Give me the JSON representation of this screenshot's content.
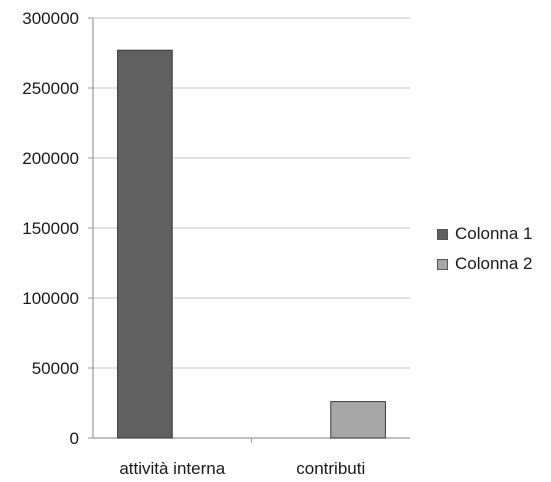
{
  "chart_data": {
    "type": "bar",
    "categories": [
      "attività interna",
      "contributi"
    ],
    "series": [
      {
        "name": "Colonna 1",
        "values": [
          277000,
          null
        ],
        "color": "#606060"
      },
      {
        "name": "Colonna 2",
        "values": [
          null,
          26000
        ],
        "color": "#a6a6a6"
      }
    ],
    "y_ticks": [
      "0",
      "50000",
      "100000",
      "150000",
      "200000",
      "250000",
      "300000"
    ],
    "ylim": [
      0,
      300000
    ],
    "grid": true,
    "legend_position": "right",
    "title": "",
    "xlabel": "",
    "ylabel": ""
  }
}
